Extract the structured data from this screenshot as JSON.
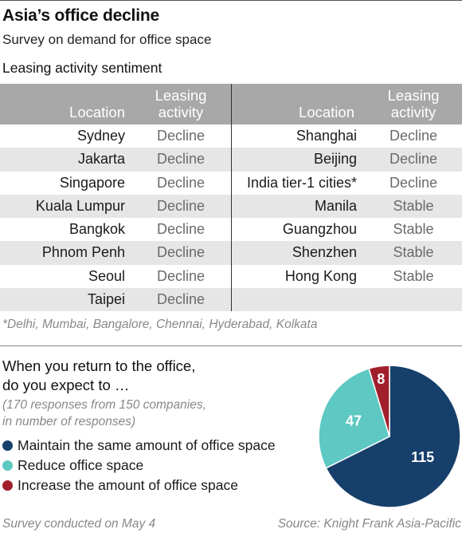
{
  "header": {
    "title": "Asia’s office decline",
    "subtitle": "Survey on demand for office space"
  },
  "table_section": {
    "title": "Leasing activity sentiment",
    "col_location": "Location",
    "col_activity_1": "Leasing",
    "col_activity_2": "activity",
    "left": [
      {
        "location": "Sydney",
        "activity": "Decline"
      },
      {
        "location": "Jakarta",
        "activity": "Decline"
      },
      {
        "location": "Singapore",
        "activity": "Decline"
      },
      {
        "location": "Kuala Lumpur",
        "activity": "Decline"
      },
      {
        "location": "Bangkok",
        "activity": "Decline"
      },
      {
        "location": "Phnom Penh",
        "activity": "Decline"
      },
      {
        "location": "Seoul",
        "activity": "Decline"
      },
      {
        "location": "Taipei",
        "activity": "Decline"
      }
    ],
    "right": [
      {
        "location": "Shanghai",
        "activity": "Decline"
      },
      {
        "location": "Beijing",
        "activity": "Decline"
      },
      {
        "location": "India tier-1 cities*",
        "activity": "Decline"
      },
      {
        "location": "Manila",
        "activity": "Stable"
      },
      {
        "location": "Guangzhou",
        "activity": "Stable"
      },
      {
        "location": "Shenzhen",
        "activity": "Stable"
      },
      {
        "location": "Hong Kong",
        "activity": "Stable"
      },
      {
        "location": "",
        "activity": ""
      }
    ],
    "footnote": "*Delhi, Mumbai, Bangalore, Chennai, Hyderabad, Kolkata"
  },
  "survey": {
    "title_line1": "When you return to the office,",
    "title_line2": "do you expect to …",
    "note_line1": "(170 responses from 150 companies,",
    "note_line2": "in number of responses)"
  },
  "chart_data": {
    "type": "pie",
    "title": "When you return to the office, do you expect to …",
    "slices": [
      {
        "label": "Maintain the same amount of office space",
        "value": 115,
        "color": "#173f6b"
      },
      {
        "label": "Reduce office space",
        "value": 47,
        "color": "#5ec8c2"
      },
      {
        "label": "Increase the amount of office space",
        "value": 8,
        "color": "#a11f2c"
      }
    ],
    "legend_position": "left"
  },
  "footer": {
    "left": "Survey conducted on May 4",
    "right": "Source: Knight Frank Asia-Pacific"
  }
}
